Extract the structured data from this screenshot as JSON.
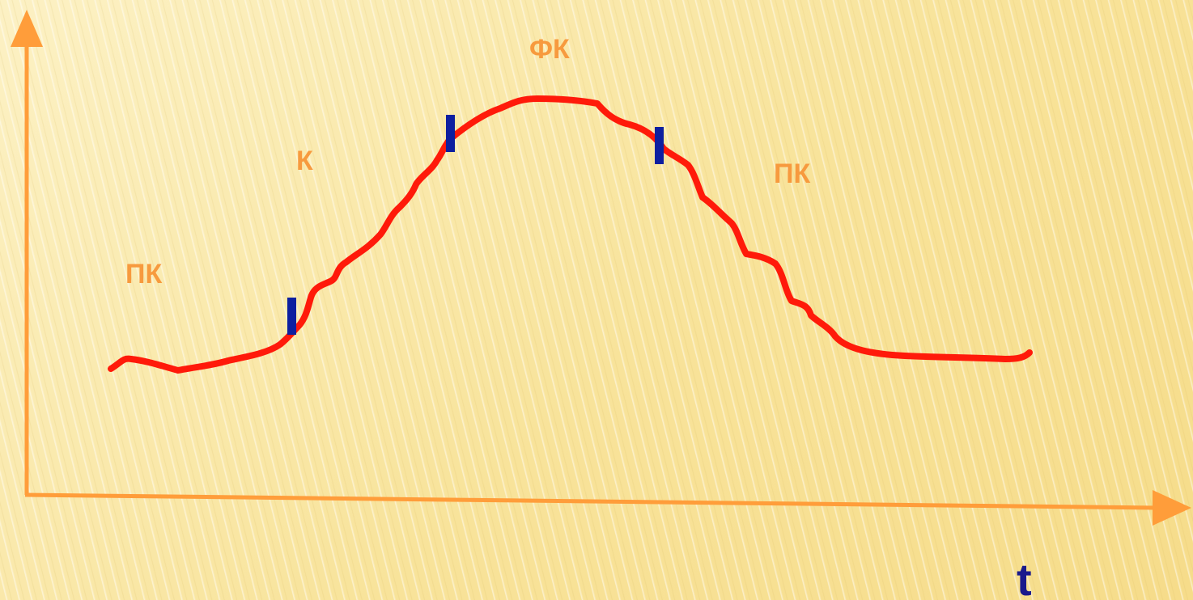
{
  "colors": {
    "axis": "#ff9d3a",
    "curve": "#ff1a0a",
    "marker": "#0d1fa0",
    "phase_label": "#f79a3e",
    "axis_label": "#1a1a8c"
  },
  "axes": {
    "x_label": "t"
  },
  "phases": [
    {
      "id": "pk-start",
      "label": "ПК"
    },
    {
      "id": "k",
      "label": "К"
    },
    {
      "id": "fk",
      "label": "ФК"
    },
    {
      "id": "pk-end",
      "label": "ПК"
    }
  ],
  "markers": [
    {
      "id": "marker-1"
    },
    {
      "id": "marker-2"
    },
    {
      "id": "marker-3"
    }
  ]
}
